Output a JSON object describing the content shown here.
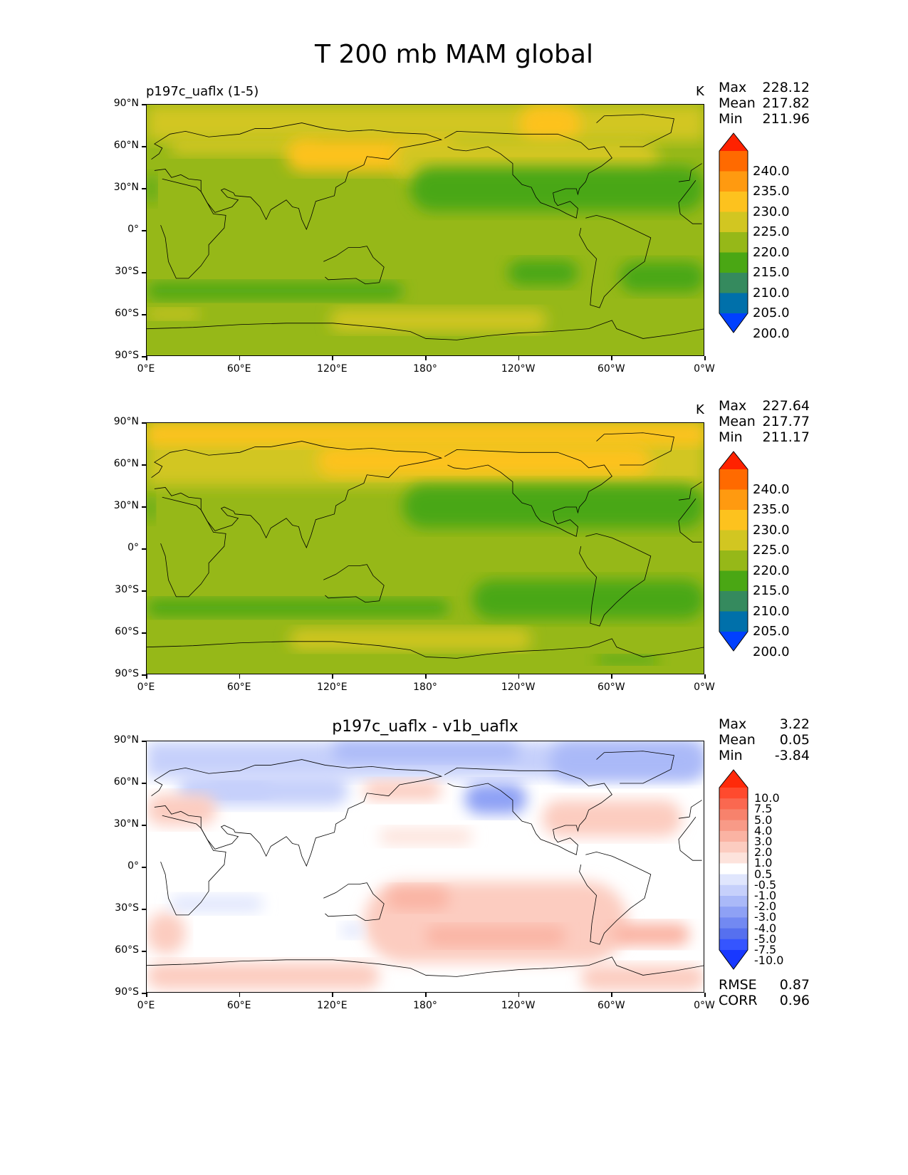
{
  "title": "T 200 mb MAM global",
  "lat_ticks": [
    "90°N",
    "60°N",
    "30°N",
    "0°",
    "30°S",
    "60°S",
    "90°S"
  ],
  "lon_ticks": [
    "0°E",
    "60°E",
    "120°E",
    "180°",
    "120°W",
    "60°W",
    "0°W"
  ],
  "panels": [
    {
      "title_left": "p197c_uaflx (1-5)",
      "title_center": "",
      "units": "K",
      "stats": [
        {
          "label": "Max",
          "value": "228.12"
        },
        {
          "label": "Mean",
          "value": "217.82"
        },
        {
          "label": "Min",
          "value": "211.96"
        }
      ]
    },
    {
      "title_left": "",
      "title_center": "",
      "units": "K",
      "stats": [
        {
          "label": "Max",
          "value": "227.64"
        },
        {
          "label": "Mean",
          "value": "217.77"
        },
        {
          "label": "Min",
          "value": "211.17"
        }
      ]
    },
    {
      "title_left": "",
      "title_center": "p197c_uaflx - v1b_uaflx",
      "units": "",
      "stats": [
        {
          "label": "Max",
          "value": "3.22"
        },
        {
          "label": "Mean",
          "value": "0.05"
        },
        {
          "label": "Min",
          "value": "-3.84"
        }
      ],
      "extra_stats": [
        {
          "label": "RMSE",
          "value": "0.87"
        },
        {
          "label": "CORR",
          "value": "0.96"
        }
      ]
    }
  ],
  "colorbar_abs": {
    "labels": [
      "240.0",
      "235.0",
      "230.0",
      "225.0",
      "220.0",
      "215.0",
      "210.0",
      "205.0",
      "200.0"
    ],
    "colors": [
      "#ff2200",
      "#ff6a00",
      "#ff9a10",
      "#fdc21e",
      "#d2c621",
      "#96b818",
      "#4aa714",
      "#358a5e",
      "#0070aa",
      "#0040ff"
    ]
  },
  "colorbar_diff": {
    "labels": [
      "10.0",
      "7.5",
      "5.0",
      "4.0",
      "3.0",
      "2.0",
      "1.0",
      "0.5",
      "-0.5",
      "-1.0",
      "-2.0",
      "-3.0",
      "-4.0",
      "-5.0",
      "-7.5",
      "-10.0"
    ],
    "colors": [
      "#ff2a0a",
      "#ff4a2e",
      "#fa6850",
      "#f7826c",
      "#f89a87",
      "#fab3a3",
      "#fcccc0",
      "#fde3dc",
      "#ffffff",
      "#e0e6fd",
      "#c6d0fb",
      "#aab9f8",
      "#8ea1f5",
      "#7289f2",
      "#5670ef",
      "#3555ff",
      "#1838ff"
    ]
  },
  "chart_data": [
    {
      "type": "heatmap",
      "name": "p197c_uaflx (1-5)",
      "units": "K",
      "xlim": [
        0,
        360
      ],
      "ylim": [
        -90,
        90
      ],
      "levels": [
        200,
        205,
        210,
        215,
        220,
        225,
        230,
        235,
        240
      ],
      "max": 228.12,
      "mean": 217.82,
      "min": 211.96,
      "background_value": 217.5,
      "regions": [
        {
          "value": 222.5,
          "lon": [
            0,
            360
          ],
          "lat": [
            64,
            90
          ]
        },
        {
          "value": 222.5,
          "lon": [
            15,
            110
          ],
          "lat": [
            54,
            66
          ]
        },
        {
          "value": 226.5,
          "lon": [
            90,
            200
          ],
          "lat": [
            42,
            66
          ]
        },
        {
          "value": 226.5,
          "lon": [
            240,
            280
          ],
          "lat": [
            62,
            90
          ]
        },
        {
          "value": 222.5,
          "lon": [
            160,
            330
          ],
          "lat": [
            36,
            66
          ]
        },
        {
          "value": 212.5,
          "lon": [
            170,
            360
          ],
          "lat": [
            14,
            46
          ]
        },
        {
          "value": 212.5,
          "lon": [
            0,
            6
          ],
          "lat": [
            20,
            40
          ]
        },
        {
          "value": 212.5,
          "lon": [
            0,
            165
          ],
          "lat": [
            -49,
            -37
          ]
        },
        {
          "value": 212.5,
          "lon": [
            233,
            278
          ],
          "lat": [
            -39,
            -21
          ]
        },
        {
          "value": 212.5,
          "lon": [
            305,
            360
          ],
          "lat": [
            -44,
            -22
          ]
        },
        {
          "value": 222.5,
          "lon": [
            118,
            258
          ],
          "lat": [
            -72,
            -56
          ]
        },
        {
          "value": 222.5,
          "lon": [
            0,
            34
          ],
          "lat": [
            -63,
            -56
          ]
        }
      ]
    },
    {
      "type": "heatmap",
      "units": "K",
      "xlim": [
        0,
        360
      ],
      "ylim": [
        -90,
        90
      ],
      "levels": [
        200,
        205,
        210,
        215,
        220,
        225,
        230,
        235,
        240
      ],
      "max": 227.64,
      "mean": 217.77,
      "min": 211.17,
      "background_value": 217.5,
      "regions": [
        {
          "value": 222.5,
          "lon": [
            0,
            360
          ],
          "lat": [
            45,
            90
          ]
        },
        {
          "value": 226.5,
          "lon": [
            0,
            360
          ],
          "lat": [
            74,
            90
          ]
        },
        {
          "value": 226.5,
          "lon": [
            110,
            325
          ],
          "lat": [
            52,
            74
          ]
        },
        {
          "value": 212.5,
          "lon": [
            165,
            360
          ],
          "lat": [
            15,
            46
          ]
        },
        {
          "value": 212.5,
          "lon": [
            0,
            5
          ],
          "lat": [
            20,
            38
          ]
        },
        {
          "value": 212.5,
          "lon": [
            0,
            195
          ],
          "lat": [
            -48,
            -36
          ]
        },
        {
          "value": 212.5,
          "lon": [
            210,
            360
          ],
          "lat": [
            -50,
            -22
          ]
        },
        {
          "value": 222.5,
          "lon": [
            92,
            248
          ],
          "lat": [
            -72,
            -57
          ]
        },
        {
          "value": 212.5,
          "lon": [
            290,
            330
          ],
          "lat": [
            -82,
            -76
          ]
        }
      ]
    },
    {
      "type": "heatmap",
      "name": "p197c_uaflx - v1b_uaflx",
      "xlim": [
        0,
        360
      ],
      "ylim": [
        -90,
        90
      ],
      "levels": [
        -10,
        -7.5,
        -5,
        -4,
        -3,
        -2,
        -1,
        -0.5,
        0.5,
        1,
        2,
        3,
        4,
        5,
        7.5,
        10
      ],
      "max": 3.22,
      "mean": 0.05,
      "min": -3.84,
      "rmse": 0.87,
      "corr": 0.96,
      "background_value": 0,
      "regions": [
        {
          "value": -1.5,
          "lon": [
            0,
            360
          ],
          "lat": [
            64,
            90
          ]
        },
        {
          "value": -2.5,
          "lon": [
            120,
            240
          ],
          "lat": [
            76,
            90
          ]
        },
        {
          "value": -2.5,
          "lon": [
            260,
            360
          ],
          "lat": [
            62,
            90
          ]
        },
        {
          "value": -2.5,
          "lon": [
            40,
            80
          ],
          "lat": [
            50,
            60
          ]
        },
        {
          "value": -1.5,
          "lon": [
            20,
            130
          ],
          "lat": [
            44,
            66
          ]
        },
        {
          "value": -3.5,
          "lon": [
            205,
            245
          ],
          "lat": [
            38,
            60
          ]
        },
        {
          "value": 1.5,
          "lon": [
            140,
            190
          ],
          "lat": [
            48,
            62
          ]
        },
        {
          "value": 1.5,
          "lon": [
            255,
            345
          ],
          "lat": [
            22,
            48
          ]
        },
        {
          "value": 1.5,
          "lon": [
            0,
            45
          ],
          "lat": [
            30,
            52
          ]
        },
        {
          "value": 0.7,
          "lon": [
            150,
            210
          ],
          "lat": [
            16,
            28
          ]
        },
        {
          "value": 1.5,
          "lon": [
            140,
            310
          ],
          "lat": [
            -68,
            -10
          ]
        },
        {
          "value": 2.5,
          "lon": [
            155,
            195
          ],
          "lat": [
            -30,
            -14
          ]
        },
        {
          "value": 2.5,
          "lon": [
            180,
            270
          ],
          "lat": [
            -56,
            -42
          ]
        },
        {
          "value": 2.5,
          "lon": [
            300,
            350
          ],
          "lat": [
            -56,
            -40
          ]
        },
        {
          "value": 1.5,
          "lon": [
            0,
            25
          ],
          "lat": [
            -62,
            -32
          ]
        },
        {
          "value": 1.5,
          "lon": [
            0,
            150
          ],
          "lat": [
            -87,
            -68
          ]
        },
        {
          "value": 1.5,
          "lon": [
            280,
            360
          ],
          "lat": [
            -88,
            -70
          ]
        },
        {
          "value": -0.7,
          "lon": [
            15,
            75
          ],
          "lat": [
            -32,
            -20
          ]
        },
        {
          "value": -0.7,
          "lon": [
            125,
            140
          ],
          "lat": [
            -50,
            -40
          ]
        }
      ]
    }
  ]
}
